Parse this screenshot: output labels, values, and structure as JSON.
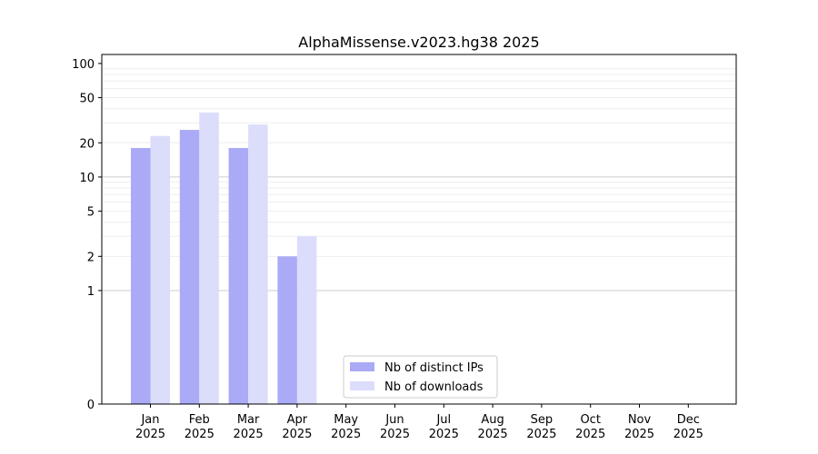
{
  "chart_data": {
    "type": "bar",
    "title": "AlphaMissense.v2023.hg38 2025",
    "xlabel": "",
    "ylabel": "",
    "yscale": "symlog",
    "ylim": [
      0,
      120
    ],
    "yticks": [
      0,
      1,
      2,
      5,
      10,
      20,
      50,
      100
    ],
    "grid": true,
    "legend_position": "bottom-center",
    "categories": [
      [
        "Jan",
        "2025"
      ],
      [
        "Feb",
        "2025"
      ],
      [
        "Mar",
        "2025"
      ],
      [
        "Apr",
        "2025"
      ],
      [
        "May",
        "2025"
      ],
      [
        "Jun",
        "2025"
      ],
      [
        "Jul",
        "2025"
      ],
      [
        "Aug",
        "2025"
      ],
      [
        "Sep",
        "2025"
      ],
      [
        "Oct",
        "2025"
      ],
      [
        "Nov",
        "2025"
      ],
      [
        "Dec",
        "2025"
      ]
    ],
    "series": [
      {
        "name": "Nb of distinct IPs",
        "color": "#aaaaf6",
        "values": [
          18,
          26,
          18,
          2,
          0,
          0,
          0,
          0,
          0,
          0,
          0,
          0
        ]
      },
      {
        "name": "Nb of downloads",
        "color": "#dcdcfb",
        "values": [
          23,
          37,
          29,
          3,
          0,
          0,
          0,
          0,
          0,
          0,
          0,
          0
        ]
      }
    ]
  }
}
